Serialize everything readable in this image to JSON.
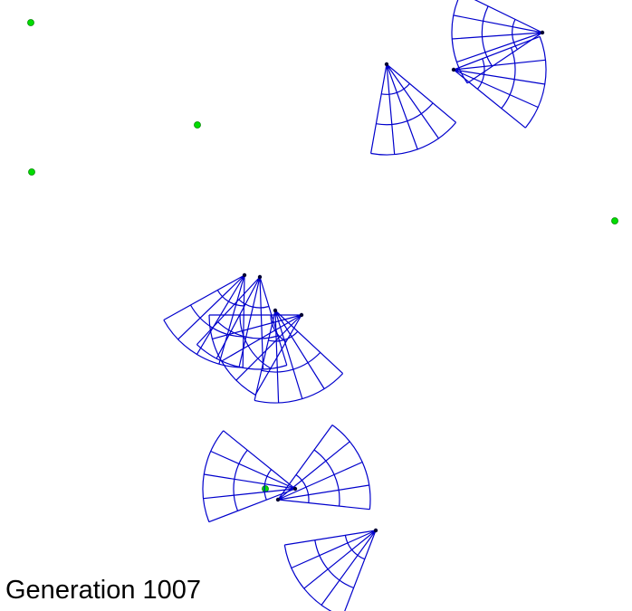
{
  "generation_label": "Generation 1007",
  "colors": {
    "background": "#ffffff",
    "food": "#00dd00",
    "food_outline": "#008800",
    "sensor": "#0000cc",
    "agent": "#000033",
    "text": "#000000"
  }
}
